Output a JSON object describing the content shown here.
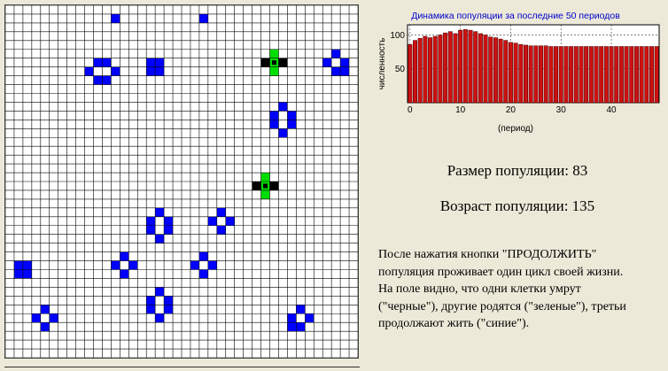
{
  "board": {
    "columns": 40,
    "rows": 40,
    "colors": {
      "alive": "#0000ff",
      "dying": "#000000",
      "born": "#00dd00",
      "grid": "#000000",
      "background": "#ffffff"
    },
    "cells_alive": [
      [
        12,
        1
      ],
      [
        22,
        1
      ],
      [
        10,
        6
      ],
      [
        11,
        6
      ],
      [
        9,
        7
      ],
      [
        12,
        7
      ],
      [
        10,
        8
      ],
      [
        11,
        8
      ],
      [
        16,
        6
      ],
      [
        17,
        6
      ],
      [
        16,
        7
      ],
      [
        17,
        7
      ],
      [
        37,
        5
      ],
      [
        36,
        6
      ],
      [
        38,
        6
      ],
      [
        37,
        7
      ],
      [
        38,
        7
      ],
      [
        31,
        11
      ],
      [
        30,
        12
      ],
      [
        32,
        12
      ],
      [
        30,
        13
      ],
      [
        32,
        13
      ],
      [
        31,
        14
      ],
      [
        24,
        23
      ],
      [
        23,
        24
      ],
      [
        25,
        24
      ],
      [
        24,
        25
      ],
      [
        17,
        23
      ],
      [
        16,
        24
      ],
      [
        18,
        24
      ],
      [
        16,
        25
      ],
      [
        18,
        25
      ],
      [
        17,
        26
      ],
      [
        13,
        28
      ],
      [
        12,
        29
      ],
      [
        14,
        29
      ],
      [
        13,
        30
      ],
      [
        22,
        28
      ],
      [
        21,
        29
      ],
      [
        23,
        29
      ],
      [
        22,
        30
      ],
      [
        1,
        29
      ],
      [
        2,
        29
      ],
      [
        1,
        30
      ],
      [
        2,
        30
      ],
      [
        17,
        32
      ],
      [
        16,
        33
      ],
      [
        18,
        33
      ],
      [
        16,
        34
      ],
      [
        18,
        34
      ],
      [
        17,
        35
      ],
      [
        4,
        34
      ],
      [
        3,
        35
      ],
      [
        5,
        35
      ],
      [
        4,
        36
      ],
      [
        33,
        34
      ],
      [
        32,
        35
      ],
      [
        34,
        35
      ],
      [
        32,
        36
      ],
      [
        33,
        36
      ]
    ],
    "cells_dying": [
      [
        29,
        6
      ],
      [
        31,
        6
      ],
      [
        28,
        20
      ],
      [
        30,
        20
      ]
    ],
    "cells_born": [
      [
        30,
        5
      ],
      [
        30,
        7
      ],
      [
        29,
        19
      ],
      [
        29,
        21
      ]
    ],
    "cells_both": [
      [
        30,
        6
      ],
      [
        29,
        20
      ]
    ]
  },
  "chart_data": {
    "type": "bar",
    "title": "Динамика популяции за последние 50 периодов",
    "xlabel": "(период)",
    "ylabel": "численность",
    "x_ticks": [
      0,
      10,
      20,
      30,
      40
    ],
    "y_ticks": [
      50,
      100
    ],
    "ylim": [
      0,
      115
    ],
    "xlim": [
      -0.5,
      49.5
    ],
    "grid": true,
    "colors": {
      "bar": "#cc1111",
      "title": "#0000cc"
    },
    "categories": [
      0,
      1,
      2,
      3,
      4,
      5,
      6,
      7,
      8,
      9,
      10,
      11,
      12,
      13,
      14,
      15,
      16,
      17,
      18,
      19,
      20,
      21,
      22,
      23,
      24,
      25,
      26,
      27,
      28,
      29,
      30,
      31,
      32,
      33,
      34,
      35,
      36,
      37,
      38,
      39,
      40,
      41,
      42,
      43,
      44,
      45,
      46,
      47,
      48,
      49
    ],
    "values": [
      86,
      92,
      95,
      98,
      96,
      98,
      100,
      103,
      105,
      102,
      107,
      108,
      107,
      105,
      102,
      100,
      97,
      96,
      94,
      92,
      89,
      88,
      86,
      85,
      84,
      84,
      84,
      84,
      83,
      83,
      83,
      83,
      83,
      83,
      83,
      83,
      83,
      83,
      83,
      83,
      83,
      83,
      83,
      83,
      83,
      83,
      83,
      83,
      83,
      83
    ]
  },
  "stats": {
    "population_size": "Размер популяции: 83",
    "population_age": "Возраст популяции: 135"
  },
  "description": {
    "line1": "После нажатия кнопки \"ПРОДОЛЖИТЬ\"",
    "line2": "популяция проживает один цикл своей жизни.",
    "line3": "На поле видно, что одни клетки умрут",
    "line4": "(\"черные\"), другие родятся (\"зеленые\"), третьи",
    "line5": "продолжают жить (\"синие\")."
  }
}
